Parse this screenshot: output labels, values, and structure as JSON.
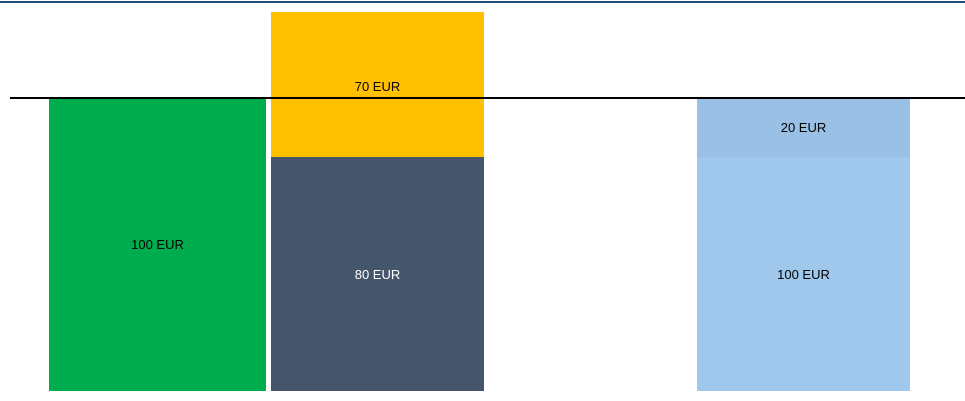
{
  "blocks": [
    {
      "label": "100 EUR"
    },
    {
      "label": "80 EUR"
    },
    {
      "label": "70 EUR"
    },
    {
      "label": "100 EUR"
    },
    {
      "label": "20 EUR"
    }
  ]
}
